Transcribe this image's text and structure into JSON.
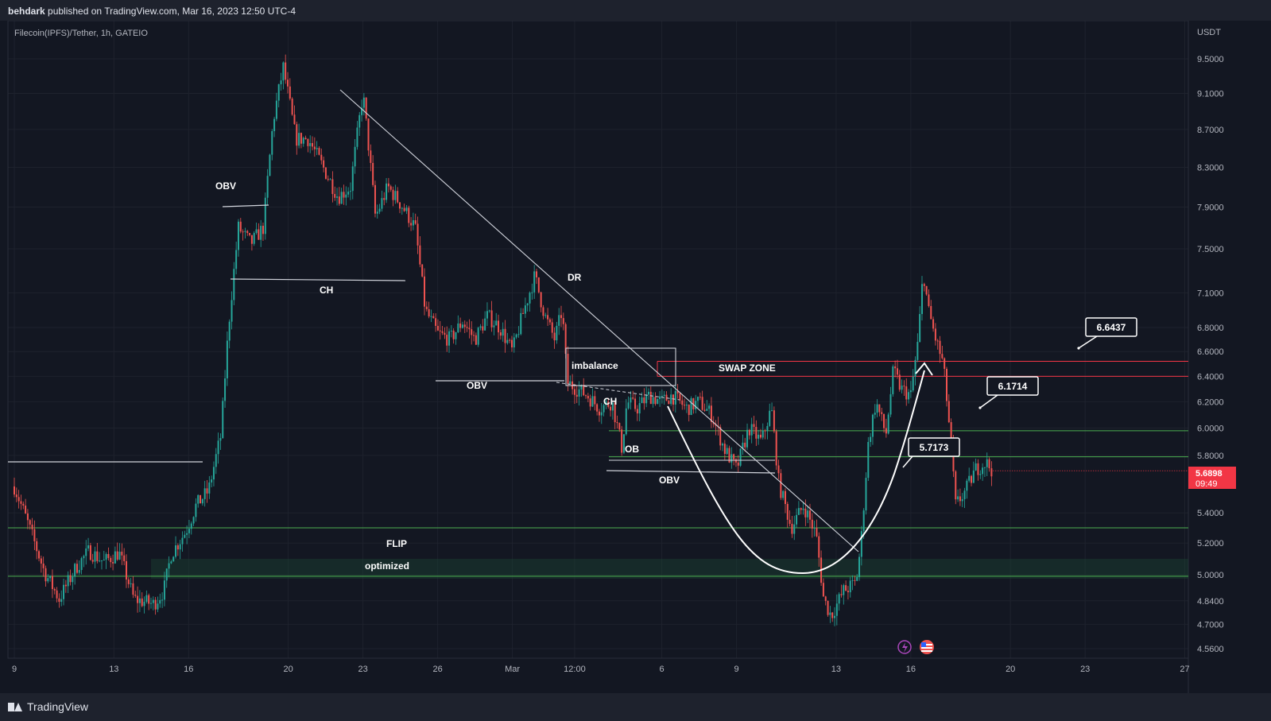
{
  "header": {
    "author": "behdark",
    "published_on": "published on TradingView.com, Mar 16, 2023 12:50 UTC-4"
  },
  "footer": {
    "brand": "TradingView"
  },
  "colors": {
    "background": "#131722",
    "up_candle": "#26a69a",
    "down_candle": "#ef5350",
    "green_level": "#4caf50",
    "red_level": "#f23645",
    "price_badge": "#f23645"
  },
  "chart_data": {
    "type": "candlestick",
    "title": "Filecoin(IPFS)/Tether, 1h, GATEIO",
    "currency_label": "USDT",
    "y_scale": "log",
    "ylim": [
      4.5,
      9.9
    ],
    "y_ticks": [
      "9.5000",
      "9.1000",
      "8.7000",
      "8.3000",
      "7.9000",
      "7.5000",
      "7.1000",
      "6.8000",
      "6.6000",
      "6.4000",
      "6.2000",
      "6.0000",
      "5.8000",
      "5.4000",
      "5.2000",
      "5.0000",
      "4.8400",
      "4.7000",
      "4.5600"
    ],
    "x_ticks": [
      "9",
      "13",
      "16",
      "20",
      "23",
      "26",
      "Mar",
      "12:00",
      "6",
      "9",
      "13",
      "16",
      "20",
      "23",
      "27"
    ],
    "last_price": "5.6898",
    "countdown": "09:49",
    "price_path": [
      {
        "d": 9.0,
        "p": 5.58
      },
      {
        "d": 9.5,
        "p": 5.35
      },
      {
        "d": 10.2,
        "p": 5.02
      },
      {
        "d": 10.8,
        "p": 4.85
      },
      {
        "d": 11.5,
        "p": 5.05
      },
      {
        "d": 12.0,
        "p": 5.15
      },
      {
        "d": 12.6,
        "p": 5.08
      },
      {
        "d": 13.2,
        "p": 5.14
      },
      {
        "d": 13.8,
        "p": 4.85
      },
      {
        "d": 14.6,
        "p": 4.82
      },
      {
        "d": 15.0,
        "p": 4.9
      },
      {
        "d": 15.3,
        "p": 5.13
      },
      {
        "d": 15.9,
        "p": 5.28
      },
      {
        "d": 16.3,
        "p": 5.45
      },
      {
        "d": 16.8,
        "p": 5.55
      },
      {
        "d": 17.3,
        "p": 5.95
      },
      {
        "d": 17.6,
        "p": 6.8
      },
      {
        "d": 18.0,
        "p": 7.7
      },
      {
        "d": 18.5,
        "p": 7.55
      },
      {
        "d": 19.0,
        "p": 7.7
      },
      {
        "d": 19.4,
        "p": 8.8
      },
      {
        "d": 19.8,
        "p": 9.4
      },
      {
        "d": 20.3,
        "p": 8.6
      },
      {
        "d": 20.8,
        "p": 8.6
      },
      {
        "d": 21.4,
        "p": 8.3
      },
      {
        "d": 22.0,
        "p": 8.0
      },
      {
        "d": 22.5,
        "p": 8.1
      },
      {
        "d": 23.0,
        "p": 9.1
      },
      {
        "d": 23.5,
        "p": 7.8
      },
      {
        "d": 24.0,
        "p": 8.1
      },
      {
        "d": 24.6,
        "p": 7.9
      },
      {
        "d": 25.1,
        "p": 7.7
      },
      {
        "d": 25.5,
        "p": 6.95
      },
      {
        "d": 26.0,
        "p": 6.75
      },
      {
        "d": 26.5,
        "p": 6.7
      },
      {
        "d": 27.0,
        "p": 6.85
      },
      {
        "d": 27.5,
        "p": 6.7
      },
      {
        "d": 28.0,
        "p": 6.9
      },
      {
        "d": 28.5,
        "p": 6.8
      },
      {
        "d": 29.0,
        "p": 6.6
      },
      {
        "d": 29.4,
        "p": 6.9
      },
      {
        "d": 29.9,
        "p": 7.25
      },
      {
        "d": 30.3,
        "p": 6.9
      },
      {
        "d": 30.7,
        "p": 6.7
      },
      {
        "d": 31.0,
        "p": 6.95
      },
      {
        "d": 31.2,
        "p": 6.35
      },
      {
        "d": 31.6,
        "p": 6.3
      },
      {
        "d": 32.0,
        "p": 6.25
      },
      {
        "d": 32.5,
        "p": 6.15
      },
      {
        "d": 33.0,
        "p": 6.2
      },
      {
        "d": 33.4,
        "p": 5.85
      },
      {
        "d": 33.6,
        "p": 6.2
      },
      {
        "d": 34.0,
        "p": 6.15
      },
      {
        "d": 34.5,
        "p": 6.25
      },
      {
        "d": 35.0,
        "p": 6.2
      },
      {
        "d": 35.4,
        "p": 6.25
      },
      {
        "d": 36.0,
        "p": 6.15
      },
      {
        "d": 36.5,
        "p": 6.2
      },
      {
        "d": 37.0,
        "p": 6.1
      },
      {
        "d": 37.5,
        "p": 5.85
      },
      {
        "d": 38.0,
        "p": 5.7
      },
      {
        "d": 38.5,
        "p": 6.0
      },
      {
        "d": 39.0,
        "p": 5.9
      },
      {
        "d": 39.4,
        "p": 6.15
      },
      {
        "d": 39.7,
        "p": 5.6
      },
      {
        "d": 40.2,
        "p": 5.3
      },
      {
        "d": 40.7,
        "p": 5.45
      },
      {
        "d": 41.2,
        "p": 5.25
      },
      {
        "d": 41.5,
        "p": 4.85
      },
      {
        "d": 41.8,
        "p": 4.75
      },
      {
        "d": 42.3,
        "p": 4.9
      },
      {
        "d": 42.8,
        "p": 4.95
      },
      {
        "d": 43.0,
        "p": 5.2
      },
      {
        "d": 43.3,
        "p": 5.9
      },
      {
        "d": 43.6,
        "p": 6.2
      },
      {
        "d": 44.0,
        "p": 5.95
      },
      {
        "d": 44.3,
        "p": 6.45
      },
      {
        "d": 44.6,
        "p": 6.3
      },
      {
        "d": 45.0,
        "p": 6.25
      },
      {
        "d": 45.3,
        "p": 6.7
      },
      {
        "d": 45.5,
        "p": 7.3
      },
      {
        "d": 45.7,
        "p": 6.95
      },
      {
        "d": 46.0,
        "p": 6.7
      },
      {
        "d": 46.3,
        "p": 6.5
      },
      {
        "d": 46.6,
        "p": 5.9
      },
      {
        "d": 46.8,
        "p": 5.45
      },
      {
        "d": 47.2,
        "p": 5.55
      },
      {
        "d": 47.6,
        "p": 5.7
      },
      {
        "d": 48.0,
        "p": 5.75
      },
      {
        "d": 48.3,
        "p": 5.69
      }
    ],
    "levels": [
      {
        "label": "OBV",
        "price": 7.93,
        "color": "white"
      },
      {
        "label": "CH",
        "price": 7.25,
        "color": "white"
      },
      {
        "label": "OBV",
        "price": 6.37,
        "color": "white"
      },
      {
        "label": "OBV",
        "price": 5.72,
        "color": "white"
      },
      {
        "label": "",
        "price": 5.77,
        "color": "white"
      },
      {
        "label": "SWAP ZONE",
        "price": 6.52,
        "color": "red"
      },
      {
        "label": "",
        "price": 6.4,
        "color": "red"
      },
      {
        "label": "",
        "price": 5.98,
        "color": "green"
      },
      {
        "label": "",
        "price": 5.79,
        "color": "green"
      },
      {
        "label": "",
        "price": 5.3,
        "color": "green"
      },
      {
        "label": "",
        "price": 4.99,
        "color": "green"
      }
    ],
    "annotations": [
      "OBV",
      "CH",
      "DR",
      "imbalance",
      "OBV",
      "CH",
      "OB",
      "OBV",
      "SWAP ZONE",
      "FLIP",
      "optimized"
    ],
    "targets": [
      "6.6437",
      "6.1714",
      "5.7173"
    ]
  }
}
